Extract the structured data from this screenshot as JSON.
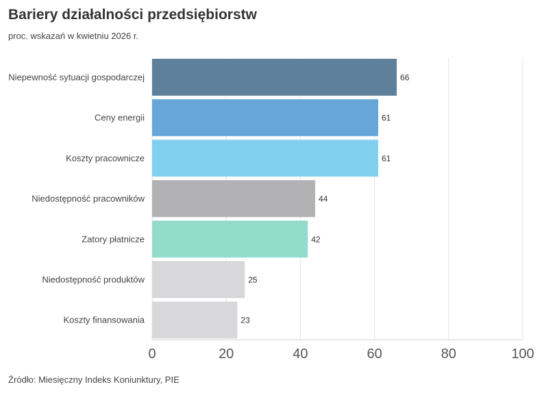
{
  "header": {
    "title": "Bariery działalności przedsiębiorstw",
    "subtitle": "proc. wskazań w kwietniu 2026 r."
  },
  "footer": {
    "source": "Źródło: Miesięczny Indeks Koniunktury, PIE"
  },
  "chart_data": {
    "type": "bar",
    "orientation": "horizontal",
    "title": "Bariery działalności przedsiębiorstw",
    "subtitle": "proc. wskazań w kwietniu 2026 r.",
    "xlabel": "",
    "ylabel": "",
    "xlim": [
      0,
      100
    ],
    "ticks": [
      0,
      20,
      40,
      60,
      80,
      100
    ],
    "grid": true,
    "categories": [
      "Niepewność sytuacji gospodarczej",
      "Ceny energii",
      "Koszty pracownicze",
      "Niedostępność pracowników",
      "Zatory płatnicze",
      "Niedostępność produktów",
      "Koszty finansowania"
    ],
    "values": [
      66,
      61,
      61,
      44,
      42,
      25,
      23
    ],
    "colors": [
      "#5e809b",
      "#66a7d8",
      "#82d0ef",
      "#b2b2b4",
      "#93dccb",
      "#d8d8da",
      "#d8d8da"
    ]
  }
}
